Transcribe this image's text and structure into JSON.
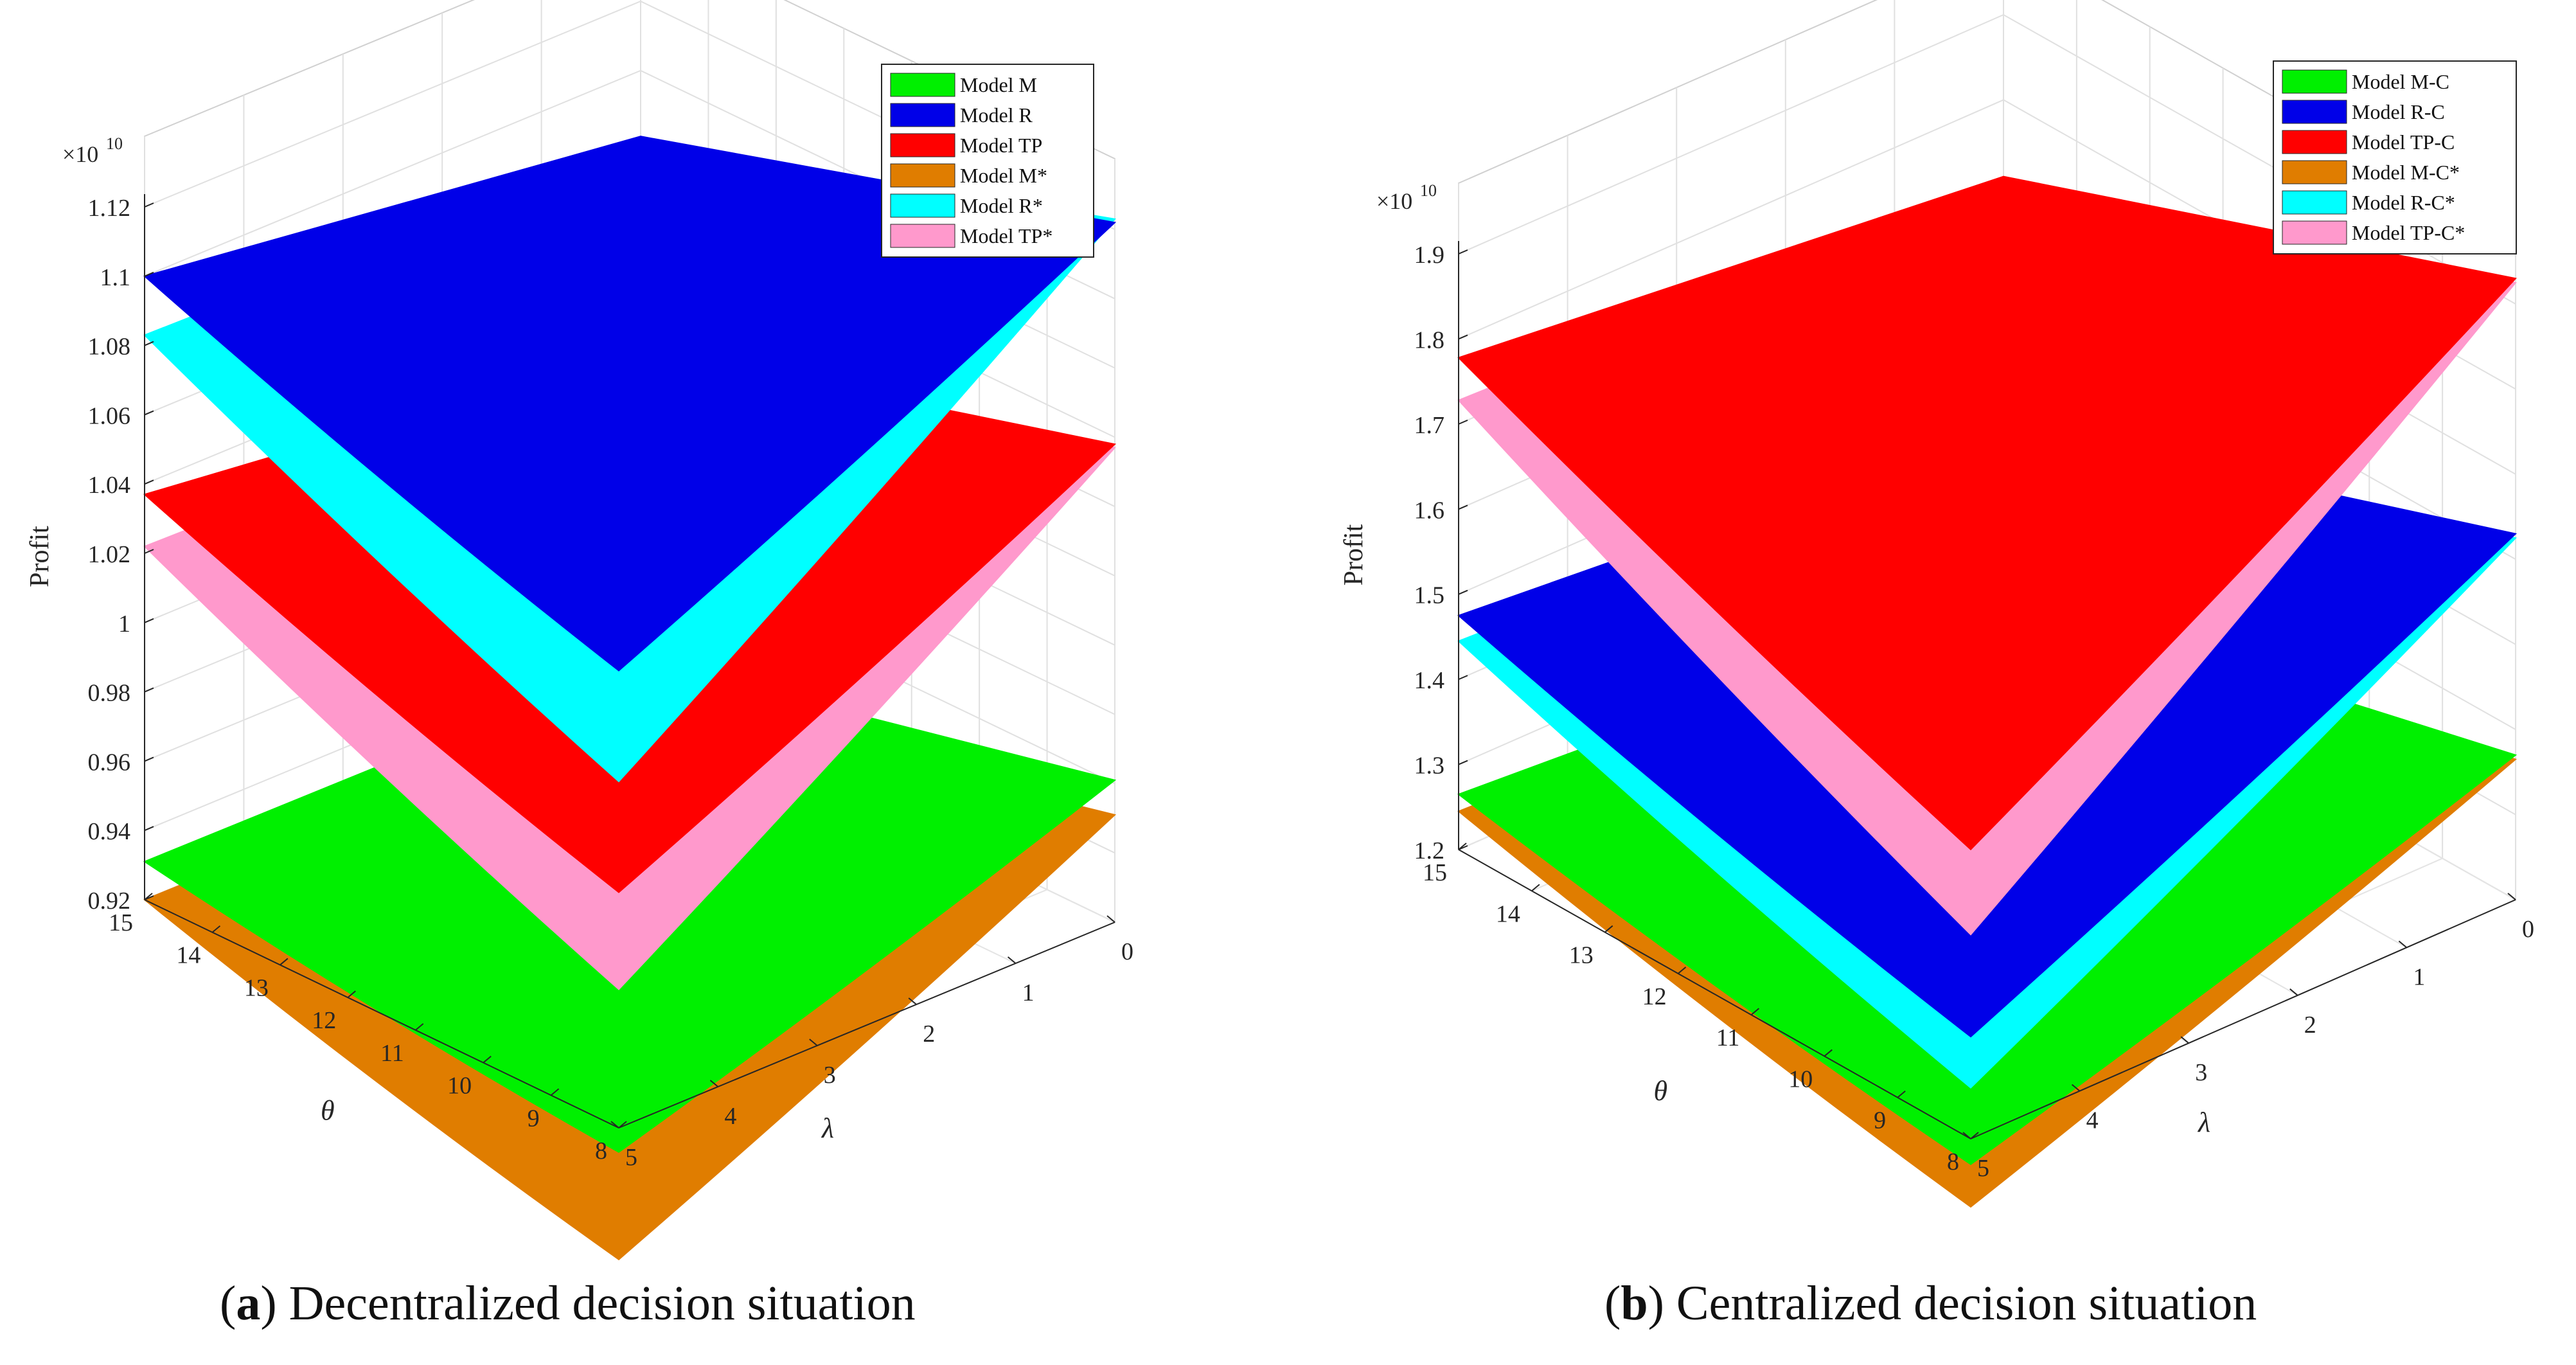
{
  "panels": [
    {
      "id": "a",
      "caption_letter": "a",
      "caption_text": "Decentralized decision situation",
      "chart_data": {
        "type": "surface3d",
        "zlabel": "Profit",
        "xlabel": "θ",
        "ylabel": "λ",
        "exponent_label": "×10",
        "exponent_power": "10",
        "theta_range": [
          8,
          15
        ],
        "lambda_range": [
          0,
          5
        ],
        "theta_ticks": [
          "8",
          "9",
          "10",
          "11",
          "12",
          "13",
          "14",
          "15"
        ],
        "lambda_ticks": [
          "0",
          "1",
          "2",
          "3",
          "4",
          "5"
        ],
        "zlim": [
          0.92,
          1.12
        ],
        "z_ticks": [
          "0.92",
          "0.94",
          "0.96",
          "0.98",
          "1",
          "1.02",
          "1.04",
          "1.06",
          "1.08",
          "1.1",
          "1.12"
        ],
        "grid": true,
        "legend_position": "top-right",
        "series": [
          {
            "name": "Model M",
            "color": "#00f000",
            "z_corners": [
              0.931,
              0.93,
              0.961,
              0.913
            ]
          },
          {
            "name": "Model R",
            "color": "#0000e8",
            "z_corners": [
              1.1,
              1.081,
              1.122,
              1.052
            ]
          },
          {
            "name": "Model TP",
            "color": "#ff0000",
            "z_corners": [
              1.037,
              1.02,
              1.058,
              0.988
            ]
          },
          {
            "name": "Model M*",
            "color": "#e07d00",
            "z_corners": [
              0.92,
              0.919,
              0.951,
              0.882
            ]
          },
          {
            "name": "Model R*",
            "color": "#00ffff",
            "z_corners": [
              1.083,
              1.08,
              1.123,
              1.02
            ]
          },
          {
            "name": "Model TP*",
            "color": "#ff99cc",
            "z_corners": [
              1.022,
              1.019,
              1.057,
              0.96
            ]
          }
        ]
      }
    },
    {
      "id": "b",
      "caption_letter": "b",
      "caption_text": "Centralized decision situation",
      "chart_data": {
        "type": "surface3d",
        "zlabel": "Profit",
        "xlabel": "θ",
        "ylabel": "λ",
        "exponent_label": "×10",
        "exponent_power": "10",
        "theta_range": [
          8,
          15
        ],
        "lambda_range": [
          0,
          5
        ],
        "theta_ticks": [
          "8",
          "9",
          "10",
          "11",
          "12",
          "13",
          "14",
          "15"
        ],
        "lambda_ticks": [
          "0",
          "1",
          "2",
          "3",
          "4",
          "5"
        ],
        "zlim": [
          1.2,
          1.9
        ],
        "z_ticks": [
          "1.2",
          "1.3",
          "1.4",
          "1.5",
          "1.6",
          "1.7",
          "1.8",
          "1.9"
        ],
        "grid": true,
        "legend_position": "top-right",
        "series": [
          {
            "name": "Model M-C",
            "color": "#00f000",
            "z_corners": [
              1.265,
              1.22,
              1.37,
              1.17
            ]
          },
          {
            "name": "Model R-C",
            "color": "#0000e8",
            "z_corners": [
              1.475,
              1.42,
              1.63,
              1.32
            ]
          },
          {
            "name": "Model TP-C",
            "color": "#ff0000",
            "z_corners": [
              1.778,
              1.71,
              1.93,
              1.54
            ]
          },
          {
            "name": "Model M-C*",
            "color": "#e07d00",
            "z_corners": [
              1.245,
              1.218,
              1.365,
              1.12
            ]
          },
          {
            "name": "Model R-C*",
            "color": "#00ffff",
            "z_corners": [
              1.445,
              1.415,
              1.625,
              1.26
            ]
          },
          {
            "name": "Model TP-C*",
            "color": "#ff99cc",
            "z_corners": [
              1.728,
              1.705,
              1.925,
              1.44
            ]
          }
        ]
      }
    }
  ]
}
